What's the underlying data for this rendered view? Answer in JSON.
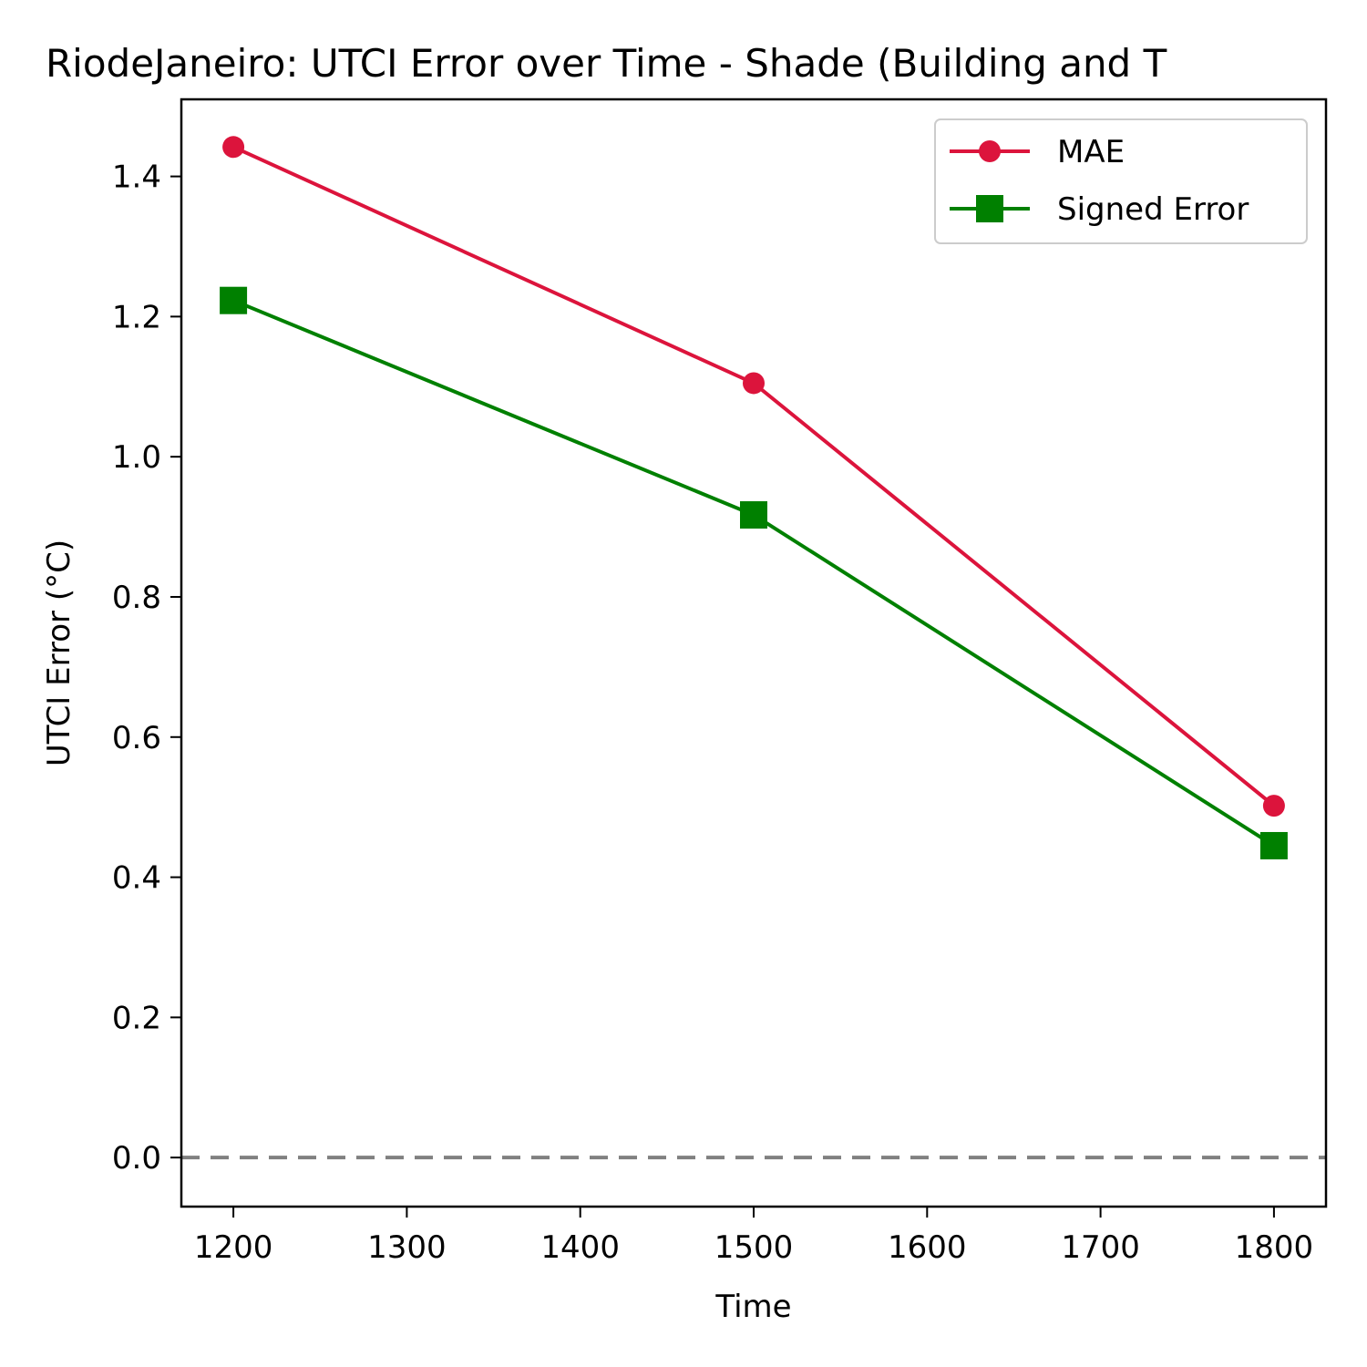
{
  "chart_data": {
    "type": "line",
    "title": "RiodeJaneiro: UTCI Error over Time - Shade (Building and T",
    "xlabel": "Time",
    "ylabel": "UTCI Error (°C)",
    "x": [
      1200,
      1500,
      1800
    ],
    "xlim": [
      1170,
      1830
    ],
    "ylim": [
      -0.07,
      1.51
    ],
    "xticks": [
      1200,
      1300,
      1400,
      1500,
      1600,
      1700,
      1800
    ],
    "yticks": [
      0.0,
      0.2,
      0.4,
      0.6,
      0.8,
      1.0,
      1.2,
      1.4
    ],
    "xtick_labels": [
      "1200",
      "1300",
      "1400",
      "1500",
      "1600",
      "1700",
      "1800"
    ],
    "ytick_labels": [
      "0.0",
      "0.2",
      "0.4",
      "0.6",
      "0.8",
      "1.0",
      "1.2",
      "1.4"
    ],
    "reference_line": {
      "y": 0.0,
      "style": "dashed",
      "color": "#808080"
    },
    "series": [
      {
        "name": "MAE",
        "values": [
          1.442,
          1.105,
          0.502
        ],
        "color": "#dc143c",
        "marker": "circle"
      },
      {
        "name": "Signed Error",
        "values": [
          1.223,
          0.917,
          0.445
        ],
        "color": "#008000",
        "marker": "square"
      }
    ],
    "legend_position": "top-right",
    "grid": false
  }
}
